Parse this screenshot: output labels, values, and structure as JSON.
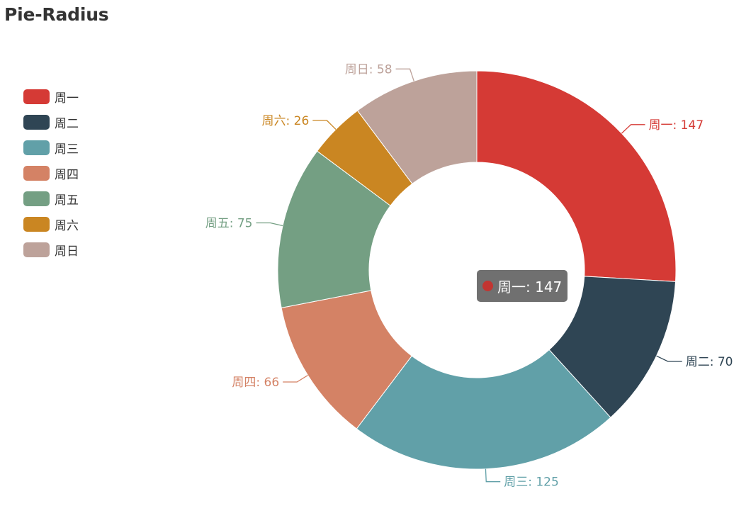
{
  "title": "Pie-Radius",
  "chart_data": {
    "type": "pie",
    "title": "Pie-Radius",
    "donut": true,
    "legend_position": "left",
    "labels": [
      "周一",
      "周二",
      "周三",
      "周四",
      "周五",
      "周六",
      "周日"
    ],
    "values": [
      147,
      70,
      125,
      66,
      75,
      26,
      58
    ],
    "colors": [
      "#d53a35",
      "#2f4554",
      "#61a0a8",
      "#d48265",
      "#749f83",
      "#ca8622",
      "#bda29a"
    ],
    "data_labels": [
      "周一: 147",
      "周二: 70",
      "周三: 125",
      "周四: 66",
      "周五: 75",
      "周六: 26",
      "周日: 58"
    ]
  },
  "tooltip": {
    "text": "周一: 147",
    "color": "#c23531"
  }
}
